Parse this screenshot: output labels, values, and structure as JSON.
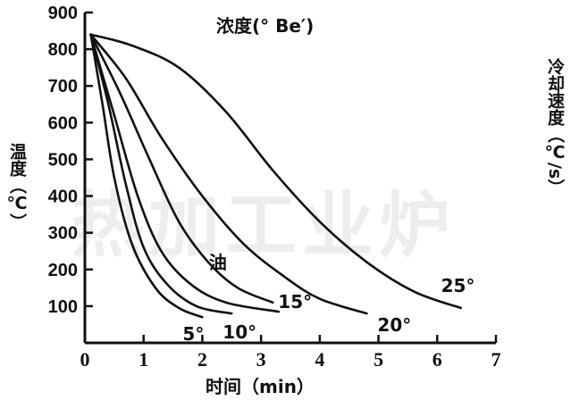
{
  "chart_data": {
    "type": "line",
    "title": "",
    "xlabel": "时间（min）",
    "ylabel": "温度（℃）",
    "right_label": "冷却速度（℃/s）",
    "legend_title": "浓度(° Be′)",
    "watermark": "热加工业炉",
    "xlim": [
      0,
      7
    ],
    "ylim": [
      0,
      900
    ],
    "x_ticks": [
      "0",
      "1",
      "2",
      "3",
      "4",
      "5",
      "6",
      "7"
    ],
    "y_ticks": [
      "100",
      "200",
      "300",
      "400",
      "500",
      "600",
      "700",
      "800",
      "900"
    ],
    "series": [
      {
        "name": "5°",
        "x": [
          0.1,
          0.3,
          0.5,
          0.8,
          1.2,
          1.6,
          2.0
        ],
        "y": [
          840,
          650,
          450,
          270,
          150,
          95,
          70
        ]
      },
      {
        "name": "10°",
        "x": [
          0.1,
          0.4,
          0.7,
          1.0,
          1.4,
          1.9,
          2.5
        ],
        "y": [
          840,
          650,
          430,
          260,
          160,
          100,
          80
        ]
      },
      {
        "name": "油",
        "x": [
          0.1,
          0.5,
          0.9,
          1.3,
          1.8,
          2.4,
          3.3
        ],
        "y": [
          840,
          620,
          400,
          250,
          160,
          110,
          85
        ]
      },
      {
        "name": "15°",
        "x": [
          0.1,
          0.6,
          1.1,
          1.6,
          2.1,
          2.6,
          3.2
        ],
        "y": [
          840,
          680,
          500,
          330,
          220,
          150,
          110
        ]
      },
      {
        "name": "20°",
        "x": [
          0.1,
          0.7,
          1.3,
          2.0,
          2.7,
          3.4,
          4.0,
          4.8
        ],
        "y": [
          840,
          720,
          560,
          400,
          270,
          180,
          120,
          80
        ]
      },
      {
        "name": "25°",
        "x": [
          0.1,
          0.8,
          1.6,
          2.4,
          3.2,
          4.0,
          4.8,
          5.6,
          6.4
        ],
        "y": [
          840,
          810,
          750,
          630,
          470,
          330,
          220,
          140,
          95
        ]
      }
    ],
    "grid": false
  }
}
